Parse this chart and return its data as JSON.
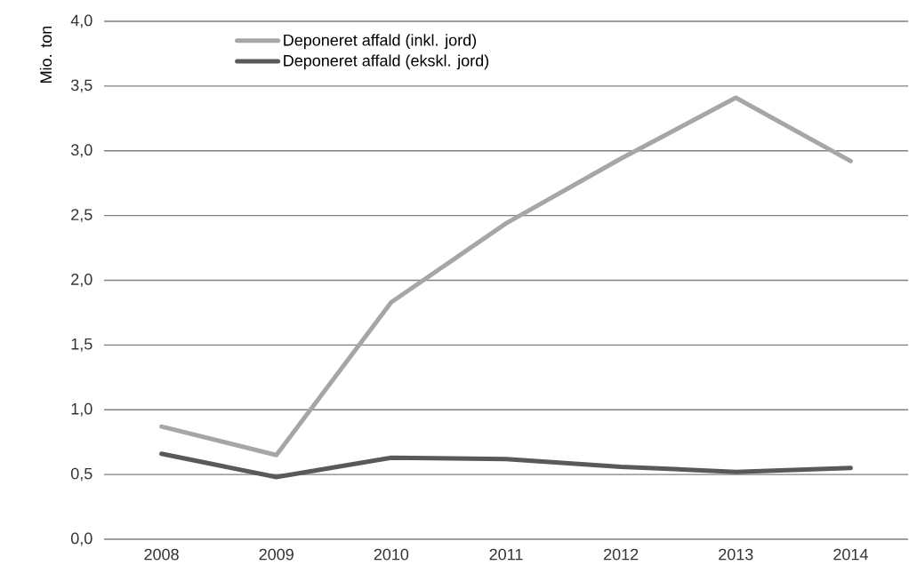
{
  "chart_data": {
    "type": "line",
    "ylabel": "Mio. ton",
    "categories": [
      "2008",
      "2009",
      "2010",
      "2011",
      "2012",
      "2013",
      "2014"
    ],
    "series": [
      {
        "name": "Deponeret affald (inkl. jord)",
        "color": "#a6a6a6",
        "values": [
          0.87,
          0.65,
          1.83,
          2.44,
          2.94,
          3.41,
          2.92
        ]
      },
      {
        "name": "Deponeret affald (ekskl. jord)",
        "color": "#595959",
        "values": [
          0.66,
          0.48,
          0.63,
          0.62,
          0.56,
          0.52,
          0.55
        ]
      }
    ],
    "ylim": [
      0,
      4
    ],
    "yticks": [
      {
        "value": 0,
        "label": "0,0"
      },
      {
        "value": 0.5,
        "label": "0,5"
      },
      {
        "value": 1,
        "label": "1,0"
      },
      {
        "value": 1.5,
        "label": "1,5"
      },
      {
        "value": 2,
        "label": "2,0"
      },
      {
        "value": 2.5,
        "label": "2,5"
      },
      {
        "value": 3,
        "label": "3,0"
      },
      {
        "value": 3.5,
        "label": "3,5"
      },
      {
        "value": 4,
        "label": "4,0"
      }
    ],
    "grid": "y",
    "legend": "top left",
    "marker": "none",
    "line_style": "solid"
  }
}
